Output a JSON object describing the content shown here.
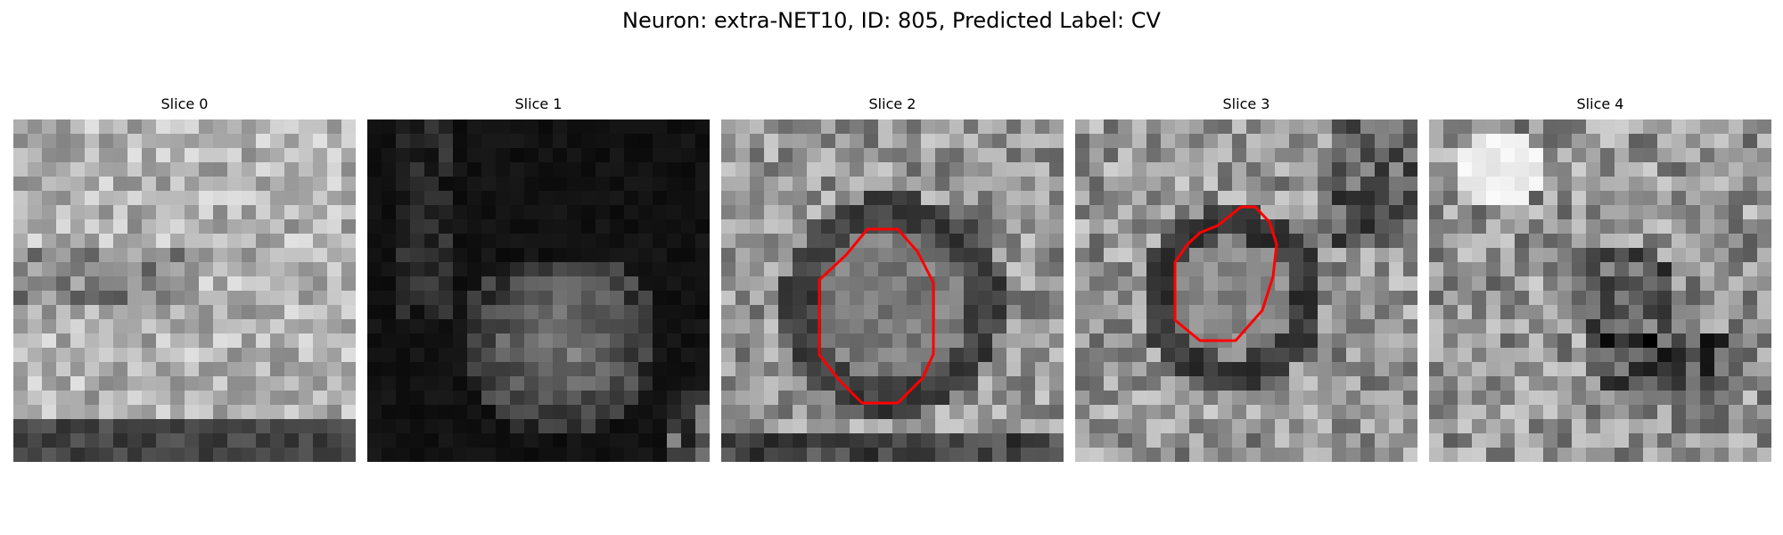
{
  "figure": {
    "title": "Neuron: extra-NET10, ID: 805, Predicted Label: CV",
    "contour_color": "#ff0000",
    "colormap": "gray"
  },
  "slices": [
    {
      "title": "Slice 0",
      "style": "bright",
      "has_contour": false
    },
    {
      "title": "Slice 1",
      "style": "dark",
      "has_contour": false
    },
    {
      "title": "Slice 2",
      "style": "ring",
      "has_contour": true
    },
    {
      "title": "Slice 3",
      "style": "ring-small",
      "has_contour": true
    },
    {
      "title": "Slice 4",
      "style": "mixed",
      "has_contour": false
    }
  ]
}
